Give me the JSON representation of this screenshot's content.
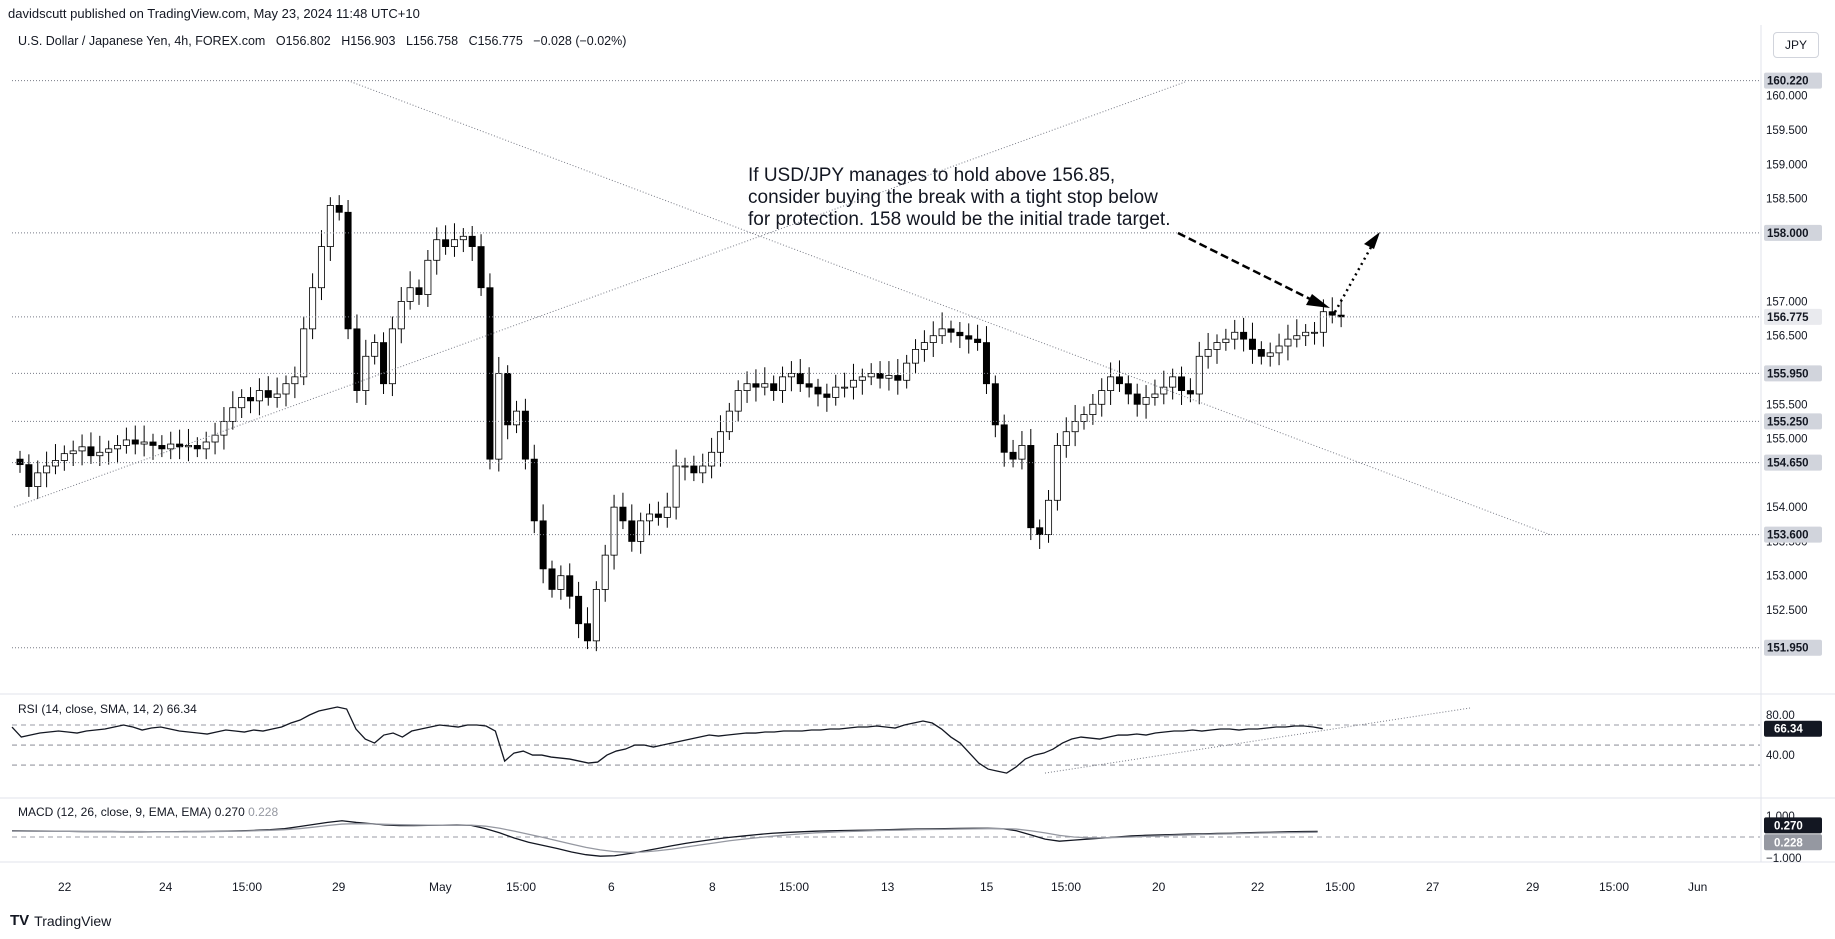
{
  "header": {
    "published": "davidscutt published on TradingView.com, May 23, 2024 11:48 UTC+10",
    "symbol": "U.S. Dollar / Japanese Yen, 4h, FOREX.com",
    "open": "O156.802",
    "high": "H156.903",
    "low": "L156.758",
    "close": "C156.775",
    "change": "−0.028 (−0.02%)"
  },
  "currency_button": "JPY",
  "annotation": {
    "lines": [
      "If USD/JPY manages to hold above 156.85,",
      "consider buying the break with a tight stop below",
      "for protection. 158 would be the initial trade target."
    ]
  },
  "brand": "TradingView",
  "colors": {
    "up": "#ffffff",
    "down": "#000000",
    "outline": "#000000",
    "badge": "#d1d4dc",
    "line": "#131722",
    "grid_dots": "#787b86"
  },
  "chart_data": [
    {
      "type": "candlestick",
      "title": "U.S. Dollar / Japanese Yen, 4h, FOREX.com",
      "ylim": [
        151.8,
        160.55
      ],
      "y_ticks": [
        "160.000",
        "159.500",
        "159.000",
        "158.500",
        "157.000",
        "156.500",
        "155.500",
        "155.000",
        "154.000",
        "153.500",
        "153.000",
        "152.500"
      ],
      "x_ticks": [
        "22",
        "24",
        "15:00",
        "29",
        "May",
        "15:00",
        "6",
        "8",
        "15:00",
        "13",
        "15",
        "15:00",
        "20",
        "22",
        "15:00",
        "27",
        "29",
        "15:00",
        "Jun"
      ],
      "price_levels": [
        "160.220",
        "158.000",
        "156.775",
        "155.950",
        "155.250",
        "154.650",
        "153.600",
        "151.950"
      ],
      "last_price": 156.775,
      "closes": [
        154.62,
        154.3,
        154.5,
        154.6,
        154.68,
        154.78,
        154.82,
        154.88,
        154.75,
        154.8,
        154.85,
        154.9,
        154.98,
        154.92,
        154.95,
        154.9,
        154.85,
        154.92,
        154.88,
        154.9,
        154.85,
        154.95,
        155.05,
        155.25,
        155.45,
        155.6,
        155.55,
        155.7,
        155.6,
        155.65,
        155.8,
        155.9,
        156.6,
        157.2,
        157.8,
        158.4,
        158.3,
        156.6,
        155.7,
        156.2,
        156.4,
        155.8,
        156.6,
        157.0,
        157.2,
        157.1,
        157.6,
        157.9,
        157.8,
        157.9,
        157.95,
        157.8,
        157.2,
        154.7,
        155.95,
        155.2,
        155.4,
        154.7,
        153.8,
        153.1,
        152.8,
        153.0,
        152.7,
        152.3,
        152.05,
        152.8,
        153.3,
        154.0,
        153.8,
        153.5,
        153.8,
        153.9,
        153.85,
        154.0,
        154.6,
        154.6,
        154.5,
        154.6,
        154.8,
        155.1,
        155.4,
        155.7,
        155.8,
        155.75,
        155.8,
        155.7,
        155.9,
        155.95,
        155.8,
        155.75,
        155.65,
        155.6,
        155.75,
        155.75,
        155.85,
        155.9,
        155.95,
        155.88,
        155.92,
        155.85,
        156.1,
        156.3,
        156.4,
        156.5,
        156.6,
        156.55,
        156.5,
        156.45,
        156.4,
        155.8,
        155.2,
        154.8,
        154.7,
        154.9,
        153.7,
        153.6,
        154.1,
        154.9,
        155.1,
        155.25,
        155.35,
        155.5,
        155.7,
        155.9,
        155.8,
        155.65,
        155.5,
        155.6,
        155.65,
        155.75,
        155.9,
        155.7,
        155.65,
        156.2,
        156.3,
        156.4,
        156.45,
        156.55,
        156.45,
        156.3,
        156.2,
        156.25,
        156.35,
        156.45,
        156.5,
        156.55,
        156.55,
        156.85,
        156.8,
        156.775
      ]
    },
    {
      "type": "line",
      "title": "RSI (14, close, SMA, 14, 2)",
      "current_value": "66.34",
      "ylim": [
        0,
        100
      ],
      "y_ticks": [
        "80.00",
        "40.00"
      ],
      "bands": [
        70,
        50,
        30
      ],
      "values": [
        68,
        58,
        60,
        62,
        63,
        64,
        63,
        62,
        64,
        65,
        66,
        68,
        70,
        68,
        65,
        67,
        68,
        66,
        64,
        63,
        62,
        61,
        63,
        65,
        64,
        63,
        65,
        64,
        66,
        68,
        72,
        75,
        80,
        84,
        86,
        88,
        86,
        66,
        56,
        52,
        60,
        62,
        58,
        64,
        66,
        68,
        70,
        69,
        68,
        70,
        70,
        69,
        64,
        34,
        42,
        44,
        40,
        40,
        38,
        37,
        36,
        34,
        32,
        33,
        40,
        44,
        46,
        50,
        50,
        48,
        50,
        52,
        54,
        56,
        58,
        60,
        59,
        60,
        61,
        62,
        62,
        63,
        63,
        64,
        64,
        64,
        65,
        65,
        66,
        66,
        67,
        68,
        68,
        69,
        68,
        67,
        70,
        72,
        74,
        72,
        66,
        58,
        52,
        42,
        32,
        26,
        24,
        22,
        28,
        36,
        40,
        42,
        46,
        52,
        56,
        58,
        57,
        56,
        58,
        60,
        60,
        61,
        60,
        62,
        63,
        64,
        64,
        65,
        64,
        65,
        66,
        66,
        65,
        66,
        66,
        67,
        68,
        68,
        69,
        69,
        68,
        66.34
      ]
    },
    {
      "type": "line",
      "title": "MACD (12, 26, close, 9, EMA, EMA)",
      "values_label": [
        "0.270",
        "0.228"
      ],
      "ylim": [
        -1.2,
        1.2
      ],
      "y_ticks": [
        "1.000",
        "−1.000"
      ],
      "series": [
        {
          "name": "MACD",
          "values": [
            0.3,
            0.29,
            0.28,
            0.27,
            0.27,
            0.26,
            0.26,
            0.26,
            0.25,
            0.25,
            0.25,
            0.25,
            0.26,
            0.26,
            0.27,
            0.28,
            0.3,
            0.32,
            0.35,
            0.4,
            0.5,
            0.6,
            0.7,
            0.78,
            0.7,
            0.64,
            0.58,
            0.55,
            0.55,
            0.56,
            0.57,
            0.58,
            0.56,
            0.4,
            0.2,
            -0.05,
            -0.25,
            -0.4,
            -0.55,
            -0.72,
            -0.85,
            -0.92,
            -0.9,
            -0.8,
            -0.68,
            -0.55,
            -0.42,
            -0.3,
            -0.2,
            -0.1,
            -0.02,
            0.05,
            0.12,
            0.18,
            0.22,
            0.25,
            0.28,
            0.3,
            0.31,
            0.32,
            0.33,
            0.35,
            0.37,
            0.38,
            0.39,
            0.4,
            0.41,
            0.42,
            0.42,
            0.4,
            0.3,
            0.1,
            -0.1,
            -0.2,
            -0.15,
            -0.1,
            -0.05,
            0.0,
            0.05,
            0.08,
            0.1,
            0.12,
            0.14,
            0.15,
            0.17,
            0.18,
            0.2,
            0.22,
            0.23,
            0.25,
            0.26,
            0.27
          ]
        },
        {
          "name": "Signal",
          "values": [
            0.28,
            0.28,
            0.27,
            0.27,
            0.27,
            0.26,
            0.26,
            0.26,
            0.26,
            0.26,
            0.25,
            0.25,
            0.25,
            0.26,
            0.26,
            0.27,
            0.28,
            0.3,
            0.32,
            0.35,
            0.4,
            0.47,
            0.55,
            0.62,
            0.64,
            0.63,
            0.61,
            0.59,
            0.58,
            0.57,
            0.57,
            0.57,
            0.57,
            0.52,
            0.42,
            0.28,
            0.13,
            -0.02,
            -0.18,
            -0.34,
            -0.5,
            -0.62,
            -0.7,
            -0.74,
            -0.72,
            -0.66,
            -0.58,
            -0.48,
            -0.38,
            -0.28,
            -0.18,
            -0.1,
            -0.03,
            0.04,
            0.1,
            0.15,
            0.2,
            0.23,
            0.26,
            0.28,
            0.3,
            0.32,
            0.33,
            0.35,
            0.36,
            0.37,
            0.38,
            0.39,
            0.4,
            0.4,
            0.38,
            0.3,
            0.2,
            0.08,
            0.0,
            -0.04,
            -0.04,
            -0.02,
            0.0,
            0.03,
            0.05,
            0.08,
            0.1,
            0.12,
            0.14,
            0.15,
            0.17,
            0.19,
            0.2,
            0.21,
            0.22,
            0.228
          ]
        }
      ]
    }
  ]
}
